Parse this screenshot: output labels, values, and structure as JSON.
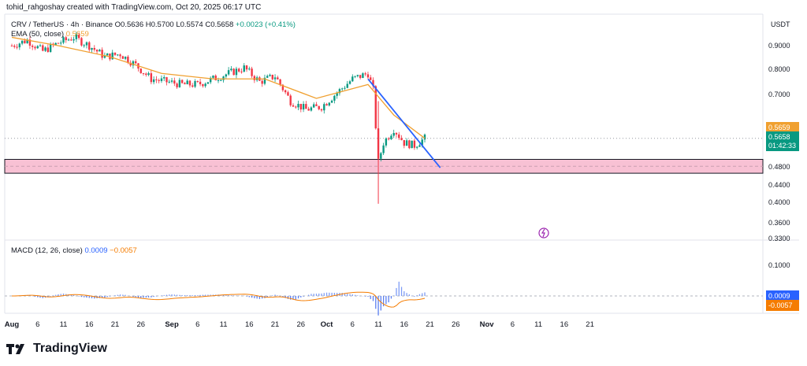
{
  "header": {
    "author_line": "tohid_rahgoshay created with TradingView.com, Oct 20, 2025 06:17 UTC",
    "symbol": "CRV / TetherUS · 4h · Binance",
    "open_label": "O",
    "open": "0.5636",
    "high_label": "H",
    "high": "0.5700",
    "low_label": "L",
    "low": "0.5574",
    "close_label": "C",
    "close": "0.5658",
    "change": "+0.0023 (+0.41%)",
    "ema_label": "EMA (50, close)",
    "ema_value": "0.5659"
  },
  "price_axis": {
    "currency": "USDT",
    "ticks": [
      "0.9000",
      "0.8000",
      "0.7000",
      "0.5659",
      "0.5658",
      "01:42:33",
      "0.4800",
      "0.4400",
      "0.4000",
      "0.3600",
      "0.3300"
    ]
  },
  "badges": {
    "ema_price": "0.5659",
    "last_price": "0.5658",
    "countdown": "01:42:33",
    "macd_value": "0.0009",
    "signal_value": "-0.0057",
    "accent_green": "#089981",
    "accent_orange": "#f0a030"
  },
  "macd": {
    "label": "MACD (12, 26, close)",
    "macd_value": "0.0009",
    "signal_value": "−0.0057",
    "axis_tick": "0.1000"
  },
  "time_axis": [
    "Aug",
    "6",
    "11",
    "16",
    "21",
    "26",
    "Sep",
    "6",
    "11",
    "16",
    "21",
    "26",
    "Oct",
    "6",
    "11",
    "16",
    "21",
    "26",
    "Nov",
    "6",
    "11",
    "16",
    "21"
  ],
  "brand": "TradingView",
  "chart_data": {
    "type": "candlestick",
    "title": "CRV / TetherUS · 4h · Binance",
    "xlabel": "",
    "ylabel": "USDT",
    "ylim": [
      0.33,
      1.0
    ],
    "series": [
      {
        "name": "CRV/USDT close (approx daily)",
        "x": [
          "Aug 1",
          "Aug 4",
          "Aug 7",
          "Aug 10",
          "Aug 13",
          "Aug 16",
          "Aug 19",
          "Aug 22",
          "Aug 25",
          "Aug 28",
          "Aug 31",
          "Sep 3",
          "Sep 6",
          "Sep 9",
          "Sep 12",
          "Sep 15",
          "Sep 18",
          "Sep 21",
          "Sep 24",
          "Sep 27",
          "Sep 30",
          "Oct 3",
          "Oct 6",
          "Oct 9",
          "Oct 10",
          "Oct 11",
          "Oct 12",
          "Oct 14",
          "Oct 16",
          "Oct 18",
          "Oct 20"
        ],
        "values": [
          0.9,
          0.92,
          0.88,
          0.91,
          0.93,
          0.9,
          0.86,
          0.87,
          0.83,
          0.78,
          0.77,
          0.76,
          0.76,
          0.78,
          0.8,
          0.82,
          0.77,
          0.79,
          0.7,
          0.67,
          0.68,
          0.73,
          0.78,
          0.8,
          0.74,
          0.48,
          0.55,
          0.6,
          0.55,
          0.54,
          0.566
        ]
      },
      {
        "name": "EMA (50, close)",
        "x": [
          "Aug 1",
          "Aug 10",
          "Aug 20",
          "Aug 30",
          "Sep 9",
          "Sep 19",
          "Sep 29",
          "Oct 9",
          "Oct 14",
          "Oct 20"
        ],
        "values": [
          0.93,
          0.9,
          0.86,
          0.8,
          0.78,
          0.78,
          0.71,
          0.76,
          0.65,
          0.566
        ]
      },
      {
        "name": "Trendline",
        "x": [
          "Oct 9",
          "Oct 23"
        ],
        "values": [
          0.78,
          0.46
        ]
      }
    ],
    "zones": [
      {
        "name": "support zone",
        "from": 0.44,
        "to": 0.49
      }
    ],
    "wick_low": {
      "x": "Oct 11",
      "value": 0.33
    }
  }
}
